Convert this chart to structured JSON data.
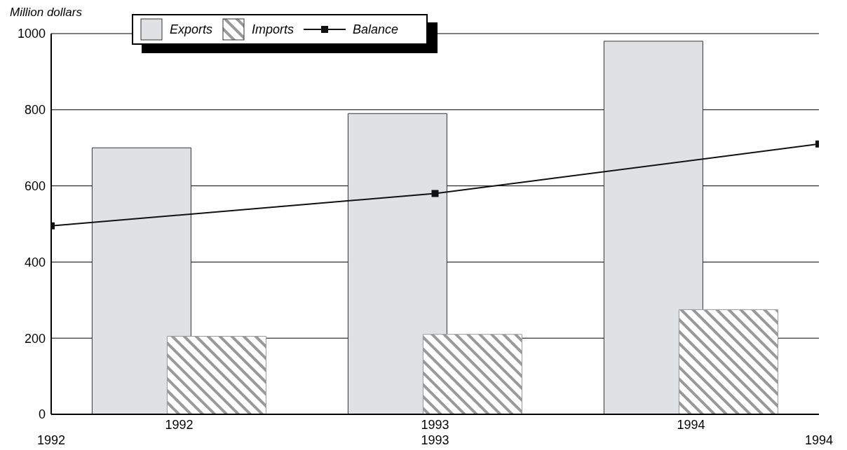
{
  "chart_data": {
    "type": "bar",
    "ylabel": "Million dollars",
    "categories": [
      "1992",
      "1993",
      "1994"
    ],
    "series": [
      {
        "name": "Exports",
        "color": "#e0e1e3",
        "values": [
          700,
          790,
          980
        ]
      },
      {
        "name": "Imports",
        "color": "#999999",
        "values": [
          205,
          210,
          275
        ]
      },
      {
        "name": "Balance",
        "type": "line",
        "color": "#111111",
        "x": [
          1992,
          1993,
          1994
        ],
        "values": [
          495,
          580,
          710
        ],
        "marker": "square",
        "axis": "x2"
      }
    ],
    "x2lim": [
      1992,
      1994
    ],
    "x2ticks": [
      1992,
      1993,
      1994
    ],
    "ylim": [
      0,
      1000
    ],
    "yticks": [
      0,
      200,
      400,
      600,
      800,
      1000
    ],
    "grid": "y",
    "legend": "top left"
  }
}
